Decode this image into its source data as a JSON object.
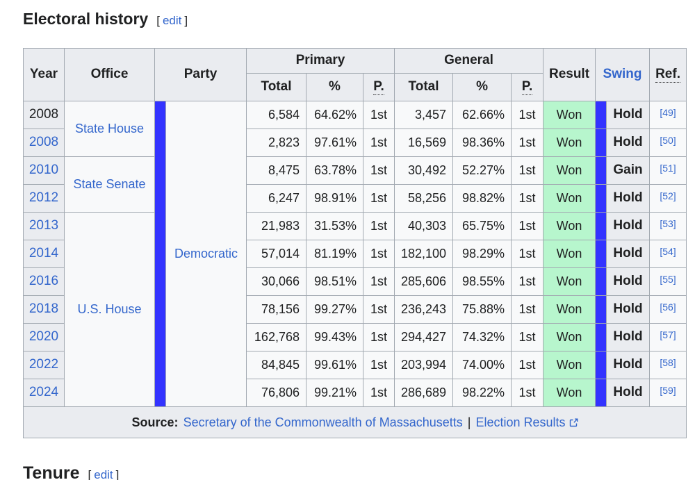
{
  "section": {
    "title": "Electoral history",
    "bracket_open": "[",
    "edit": "edit",
    "bracket_close": "]"
  },
  "next_section": {
    "title": "Tenure",
    "bracket_open": "[",
    "edit": "edit",
    "bracket_close": "]"
  },
  "colors": {
    "party_blue": "#3333ff",
    "won_green": "#b7f6cd",
    "link_blue": "#3366cc",
    "header_bg": "#eaecf0",
    "cell_bg": "#f8f9fa",
    "border": "#a2a9b1"
  },
  "table": {
    "headers": {
      "year": "Year",
      "office": "Office",
      "party": "Party",
      "primary": "Primary",
      "general": "General",
      "total": "Total",
      "percent": "%",
      "place": "P.",
      "result": "Result",
      "swing": "Swing",
      "ref": "Ref."
    },
    "party": {
      "name": "Democratic",
      "color": "#3333ff"
    },
    "rows": [
      {
        "year": "2008",
        "year_link": false,
        "office": {
          "label": "State House",
          "rowspan": 2
        },
        "primary_total": "6,584",
        "primary_pct": "64.62%",
        "primary_place": "1st",
        "general_total": "3,457",
        "general_pct": "62.66%",
        "general_place": "1st",
        "result": "Won",
        "swing": "Hold",
        "ref": "[49]"
      },
      {
        "year": "2008",
        "year_link": true,
        "primary_total": "2,823",
        "primary_pct": "97.61%",
        "primary_place": "1st",
        "general_total": "16,569",
        "general_pct": "98.36%",
        "general_place": "1st",
        "result": "Won",
        "swing": "Hold",
        "ref": "[50]"
      },
      {
        "year": "2010",
        "year_link": true,
        "office": {
          "label": "State Senate",
          "rowspan": 2
        },
        "primary_total": "8,475",
        "primary_pct": "63.78%",
        "primary_place": "1st",
        "general_total": "30,492",
        "general_pct": "52.27%",
        "general_place": "1st",
        "result": "Won",
        "swing": "Gain",
        "ref": "[51]"
      },
      {
        "year": "2012",
        "year_link": true,
        "primary_total": "6,247",
        "primary_pct": "98.91%",
        "primary_place": "1st",
        "general_total": "58,256",
        "general_pct": "98.82%",
        "general_place": "1st",
        "result": "Won",
        "swing": "Hold",
        "ref": "[52]"
      },
      {
        "year": "2013",
        "year_link": true,
        "office": {
          "label": "U.S. House",
          "rowspan": 7
        },
        "primary_total": "21,983",
        "primary_pct": "31.53%",
        "primary_place": "1st",
        "general_total": "40,303",
        "general_pct": "65.75%",
        "general_place": "1st",
        "result": "Won",
        "swing": "Hold",
        "ref": "[53]"
      },
      {
        "year": "2014",
        "year_link": true,
        "primary_total": "57,014",
        "primary_pct": "81.19%",
        "primary_place": "1st",
        "general_total": "182,100",
        "general_pct": "98.29%",
        "general_place": "1st",
        "result": "Won",
        "swing": "Hold",
        "ref": "[54]"
      },
      {
        "year": "2016",
        "year_link": true,
        "primary_total": "30,066",
        "primary_pct": "98.51%",
        "primary_place": "1st",
        "general_total": "285,606",
        "general_pct": "98.55%",
        "general_place": "1st",
        "result": "Won",
        "swing": "Hold",
        "ref": "[55]"
      },
      {
        "year": "2018",
        "year_link": true,
        "primary_total": "78,156",
        "primary_pct": "99.27%",
        "primary_place": "1st",
        "general_total": "236,243",
        "general_pct": "75.88%",
        "general_place": "1st",
        "result": "Won",
        "swing": "Hold",
        "ref": "[56]"
      },
      {
        "year": "2020",
        "year_link": true,
        "primary_total": "162,768",
        "primary_pct": "99.43%",
        "primary_place": "1st",
        "general_total": "294,427",
        "general_pct": "74.32%",
        "general_place": "1st",
        "result": "Won",
        "swing": "Hold",
        "ref": "[57]"
      },
      {
        "year": "2022",
        "year_link": true,
        "primary_total": "84,845",
        "primary_pct": "99.61%",
        "primary_place": "1st",
        "general_total": "203,994",
        "general_pct": "74.00%",
        "general_place": "1st",
        "result": "Won",
        "swing": "Hold",
        "ref": "[58]"
      },
      {
        "year": "2024",
        "year_link": true,
        "primary_total": "76,806",
        "primary_pct": "99.21%",
        "primary_place": "1st",
        "general_total": "286,689",
        "general_pct": "98.22%",
        "general_place": "1st",
        "result": "Won",
        "swing": "Hold",
        "ref": "[59]"
      }
    ],
    "footer": {
      "source_label": "Source:",
      "link1": "Secretary of the Commonwealth of Massachusetts",
      "separator": "|",
      "link2": "Election Results"
    }
  }
}
